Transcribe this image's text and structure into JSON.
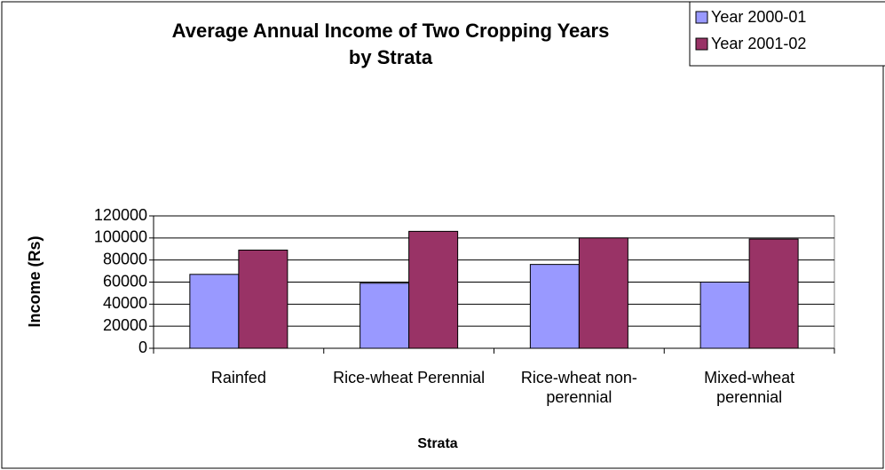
{
  "chart_data": {
    "type": "bar",
    "title": "Average Annual Income of Two Cropping Years by Strata",
    "x_label": "Strata",
    "y_label": "Income (Rs)",
    "categories": [
      "Rainfed",
      "Rice-wheat Perennial",
      "Rice-wheat non-perennial",
      "Mixed-wheat perennial"
    ],
    "series": [
      {
        "name": "Year 2000-01",
        "color": "#9999ff",
        "values": [
          67000,
          59000,
          76000,
          60000
        ]
      },
      {
        "name": "Year 2001-02",
        "color": "#993366",
        "values": [
          89000,
          106000,
          100000,
          99000
        ]
      }
    ],
    "ylim": [
      0,
      120000
    ],
    "yticks": [
      0,
      20000,
      40000,
      60000,
      80000,
      100000,
      120000
    ],
    "grid": true,
    "legend": "top-right"
  }
}
